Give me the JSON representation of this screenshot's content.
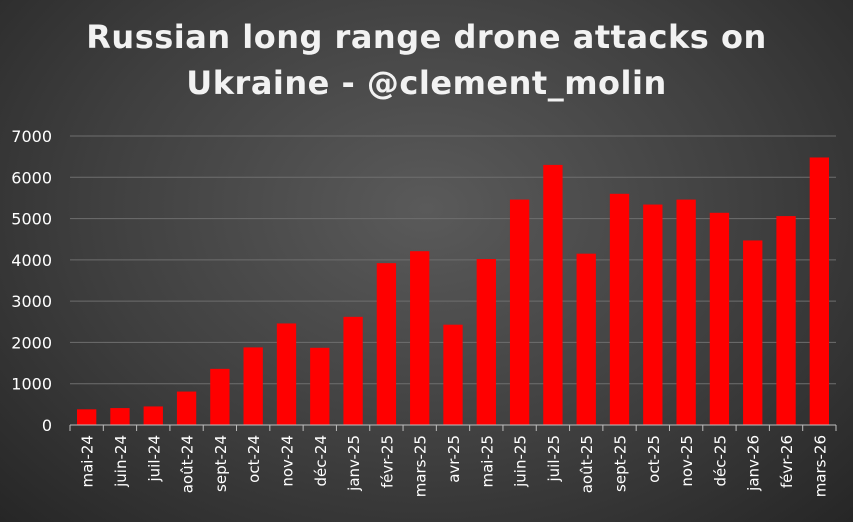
{
  "chart_data": {
    "type": "bar",
    "title_lines": [
      "Russian long range drone attacks on",
      "Ukraine - @clement_molin"
    ],
    "categories": [
      "mai-24",
      "juin-24",
      "juil-24",
      "août-24",
      "sept-24",
      "oct-24",
      "nov-24",
      "déc-24",
      "janv-25",
      "févr-25",
      "mars-25",
      "avr-25",
      "mai-25",
      "juin-25",
      "juil-25",
      "août-25",
      "sept-25",
      "oct-25",
      "nov-25",
      "déc-25",
      "janv-26",
      "févr-26",
      "mars-26"
    ],
    "values": [
      380,
      410,
      450,
      810,
      1360,
      1880,
      2460,
      1870,
      2620,
      3920,
      4210,
      2430,
      4020,
      5460,
      6300,
      4150,
      5600,
      5340,
      5460,
      5140,
      4470,
      5060,
      6480
    ],
    "ylim": [
      0,
      7000
    ],
    "yticks": [
      0,
      1000,
      2000,
      3000,
      4000,
      5000,
      6000,
      7000
    ],
    "grid": true,
    "bar_color": "#ff0000",
    "grid_color": "#6e6e6e",
    "text_color": "#ffffff"
  }
}
